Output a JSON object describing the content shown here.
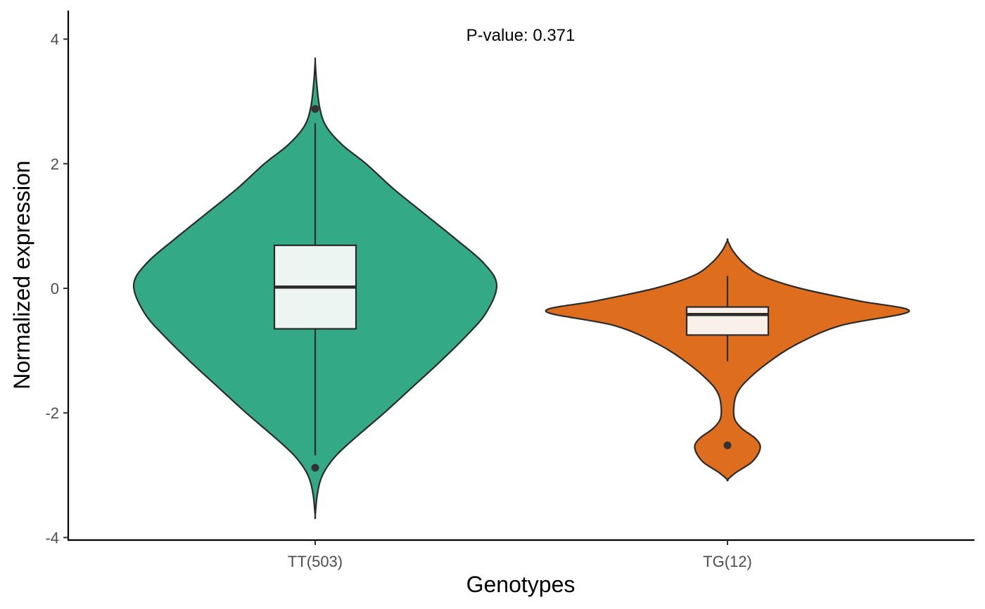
{
  "chart_data": {
    "type": "violin",
    "annotation": "P-value: 0.371",
    "xlabel": "Genotypes",
    "ylabel": "Normalized expression",
    "ylim": [
      -4,
      4.5
    ],
    "yticks": [
      4,
      2,
      0,
      -2,
      -4
    ],
    "ytick_labels": [
      "4",
      "2",
      "0",
      "-2",
      "-4"
    ],
    "grid": false,
    "legend": "none",
    "categories": [
      "TT(503)",
      "TG(12)"
    ],
    "groups": [
      {
        "label": "TT(503)",
        "color": "#33A985",
        "box_color": "#EDF5F2",
        "box": {
          "q1": -0.65,
          "median": 0.02,
          "q3": 0.69,
          "whisker_low": -2.68,
          "whisker_high": 2.65
        },
        "outliers": [
          2.88,
          -2.88
        ],
        "violin": {
          "max_halfwidth_frac": 1.0,
          "profile": [
            [
              -3.65,
              0.0
            ],
            [
              -3.3,
              0.012
            ],
            [
              -3.0,
              0.04
            ],
            [
              -2.7,
              0.11
            ],
            [
              -2.4,
              0.22
            ],
            [
              -2.0,
              0.38
            ],
            [
              -1.6,
              0.53
            ],
            [
              -1.2,
              0.68
            ],
            [
              -0.8,
              0.82
            ],
            [
              -0.4,
              0.94
            ],
            [
              0.05,
              1.0
            ],
            [
              0.4,
              0.93
            ],
            [
              0.8,
              0.77
            ],
            [
              1.2,
              0.6
            ],
            [
              1.6,
              0.43
            ],
            [
              2.0,
              0.28
            ],
            [
              2.3,
              0.15
            ],
            [
              2.6,
              0.06
            ],
            [
              2.9,
              0.025
            ],
            [
              3.3,
              0.008
            ],
            [
              3.65,
              0.0
            ]
          ]
        }
      },
      {
        "label": "TG(12)",
        "color": "#DE6E1E",
        "box_color": "#FAF0EA",
        "box": {
          "q1": -0.75,
          "median": -0.42,
          "q3": -0.3,
          "whisker_low": -1.17,
          "whisker_high": 0.2
        },
        "outliers": [
          -2.52
        ],
        "violin": {
          "max_halfwidth_frac": 1.0,
          "profile": [
            [
              -3.07,
              0.0
            ],
            [
              -2.95,
              0.05
            ],
            [
              -2.8,
              0.13
            ],
            [
              -2.65,
              0.17
            ],
            [
              -2.52,
              0.18
            ],
            [
              -2.4,
              0.15
            ],
            [
              -2.25,
              0.08
            ],
            [
              -2.1,
              0.04
            ],
            [
              -1.9,
              0.035
            ],
            [
              -1.7,
              0.05
            ],
            [
              -1.5,
              0.1
            ],
            [
              -1.2,
              0.22
            ],
            [
              -0.9,
              0.38
            ],
            [
              -0.6,
              0.62
            ],
            [
              -0.37,
              1.0
            ],
            [
              -0.2,
              0.72
            ],
            [
              0.0,
              0.4
            ],
            [
              0.2,
              0.19
            ],
            [
              0.4,
              0.09
            ],
            [
              0.6,
              0.03
            ],
            [
              0.77,
              0.0
            ]
          ]
        }
      }
    ]
  }
}
